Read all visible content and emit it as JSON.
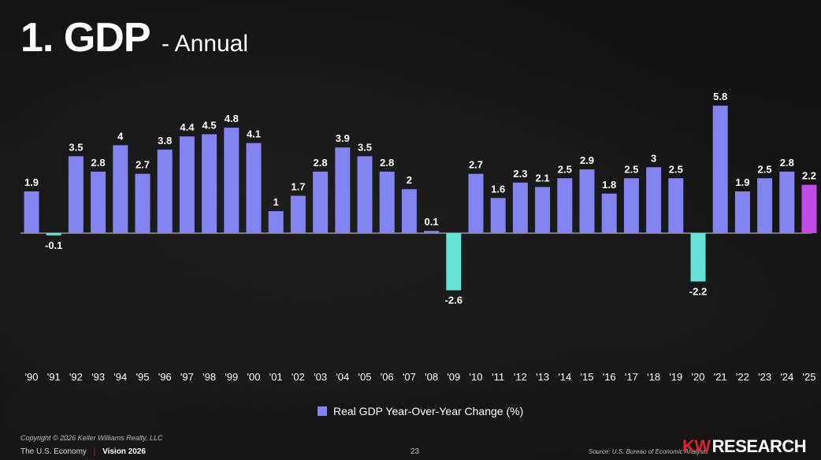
{
  "title": {
    "main": "1. GDP",
    "sub": "- Annual"
  },
  "colors": {
    "positive": "#8284F0",
    "negative": "#66E2D6",
    "highlight": "#C04BE8",
    "label": "#ffffff"
  },
  "chart_data": {
    "type": "bar",
    "title": "GDP - Annual",
    "xlabel": "",
    "ylabel": "",
    "ylim": [
      -3,
      6
    ],
    "grid": false,
    "legend": "bottom-center",
    "categories": [
      "'90",
      "'91",
      "'92",
      "'93",
      "'94",
      "'95",
      "'96",
      "'97",
      "'98",
      "'99",
      "'00",
      "'01",
      "'02",
      "'03",
      "'04",
      "'05",
      "'06",
      "'07",
      "'08",
      "'09",
      "'10",
      "'11",
      "'12",
      "'13",
      "'14",
      "'15",
      "'16",
      "'17",
      "'18",
      "'19",
      "'20",
      "'21",
      "'22",
      "'23",
      "'24",
      "'25"
    ],
    "series": [
      {
        "name": "Real GDP Year-Over-Year Change (%)",
        "values": [
          1.9,
          -0.1,
          3.5,
          2.8,
          4,
          2.7,
          3.8,
          4.4,
          4.5,
          4.8,
          4.1,
          1,
          1.7,
          2.8,
          3.9,
          3.5,
          2.8,
          2,
          0.1,
          -2.6,
          2.7,
          1.6,
          2.3,
          2.1,
          2.5,
          2.9,
          1.8,
          2.5,
          3,
          2.5,
          -2.2,
          5.8,
          1.9,
          2.5,
          2.8,
          2.2
        ],
        "labels": [
          "1.9",
          "-0.1",
          "3.5",
          "2.8",
          "4",
          "2.7",
          "3.8",
          "4.4",
          "4.5",
          "4.8",
          "4.1",
          "1",
          "1.7",
          "2.8",
          "3.9",
          "3.5",
          "2.8",
          "2",
          "0.1",
          "-2.6",
          "2.7",
          "1.6",
          "2.3",
          "2.1",
          "2.5",
          "2.9",
          "1.8",
          "2.5",
          "3",
          "2.5",
          "-2.2",
          "5.8",
          "1.9",
          "2.5",
          "2.8",
          "2.2"
        ]
      }
    ],
    "highlight_category": "'25"
  },
  "legend": {
    "label": "Real GDP Year-Over-Year Change (%)"
  },
  "footer": {
    "copyright": "Copyright © 2026 Keller Williams Realty, LLC",
    "section": "The U.S. Economy",
    "separator": "|",
    "vision": "Vision 2026",
    "page": "23",
    "source": "Source: U.S. Bureau of Economic Analysis",
    "logo_kw": "KW",
    "logo_research": "RESEARCH"
  }
}
